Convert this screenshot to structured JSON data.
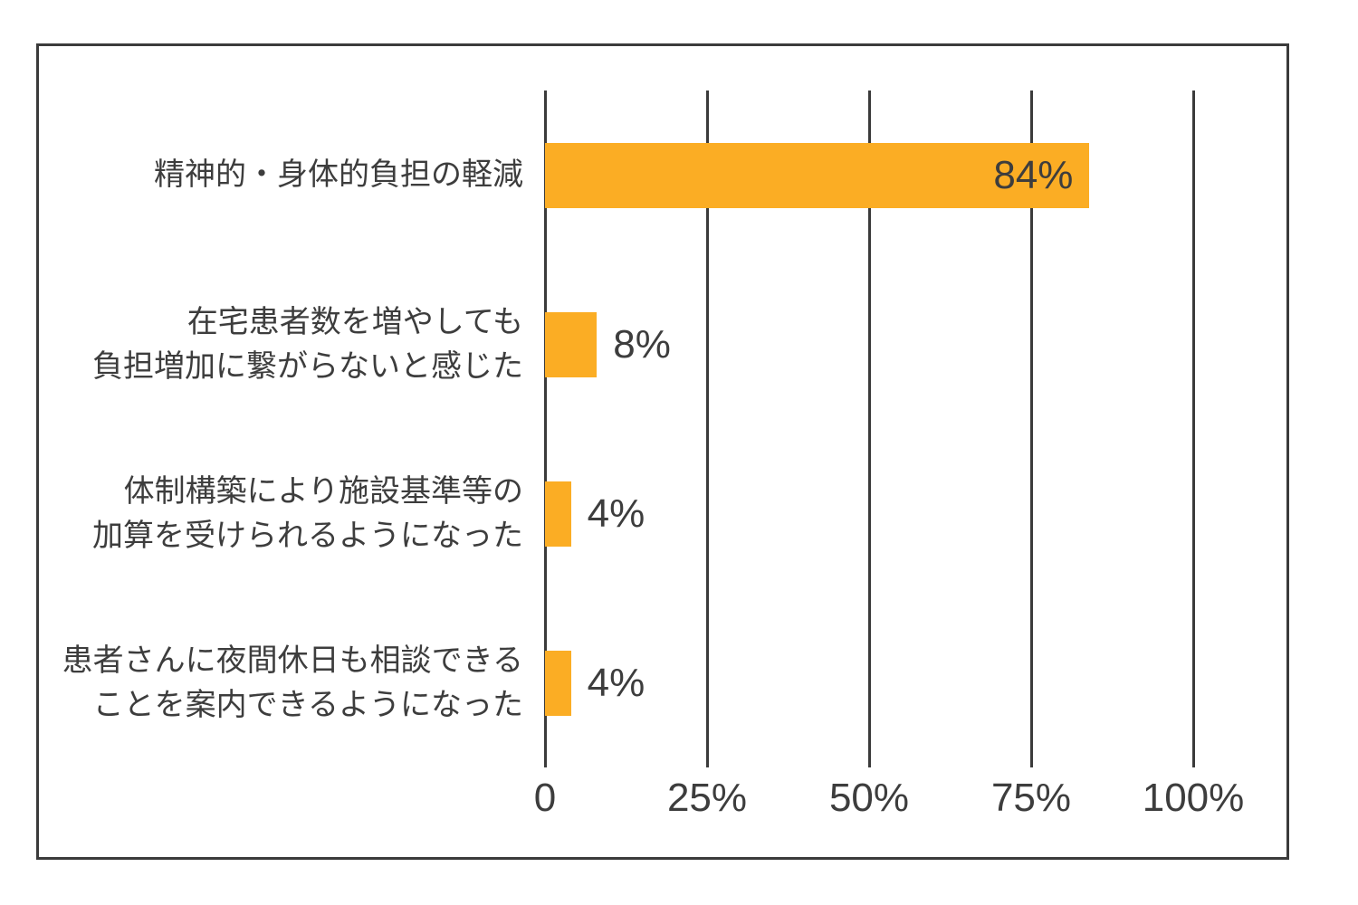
{
  "chart_data": {
    "type": "bar",
    "orientation": "horizontal",
    "title": "",
    "categories": [
      "精神的・身体的負担の軽減",
      "在宅患者数を増やしても\n負担増加に繋がらないと感じた",
      "体制構築により施設基準等の\n加算を受けられるようになった",
      "患者さんに夜間休日も相談できる\nことを案内できるようになった"
    ],
    "values": [
      84,
      8,
      4,
      4
    ],
    "value_labels": [
      "84%",
      "8%",
      "4%",
      "4%"
    ],
    "x_ticks": [
      {
        "label": "0",
        "value": 0
      },
      {
        "label": "25%",
        "value": 25
      },
      {
        "label": "50%",
        "value": 50
      },
      {
        "label": "75%",
        "value": 75
      },
      {
        "label": "100%",
        "value": 100
      }
    ],
    "xlabel": "",
    "ylabel": "",
    "xlim": [
      0,
      100
    ],
    "grid": true,
    "legend": false,
    "colors": {
      "bar": "#fbad24",
      "text": "#3d3d3d",
      "gridline": "#3b3b3b",
      "frame_border": "#3b3b3b",
      "background": "#ffffff"
    }
  }
}
